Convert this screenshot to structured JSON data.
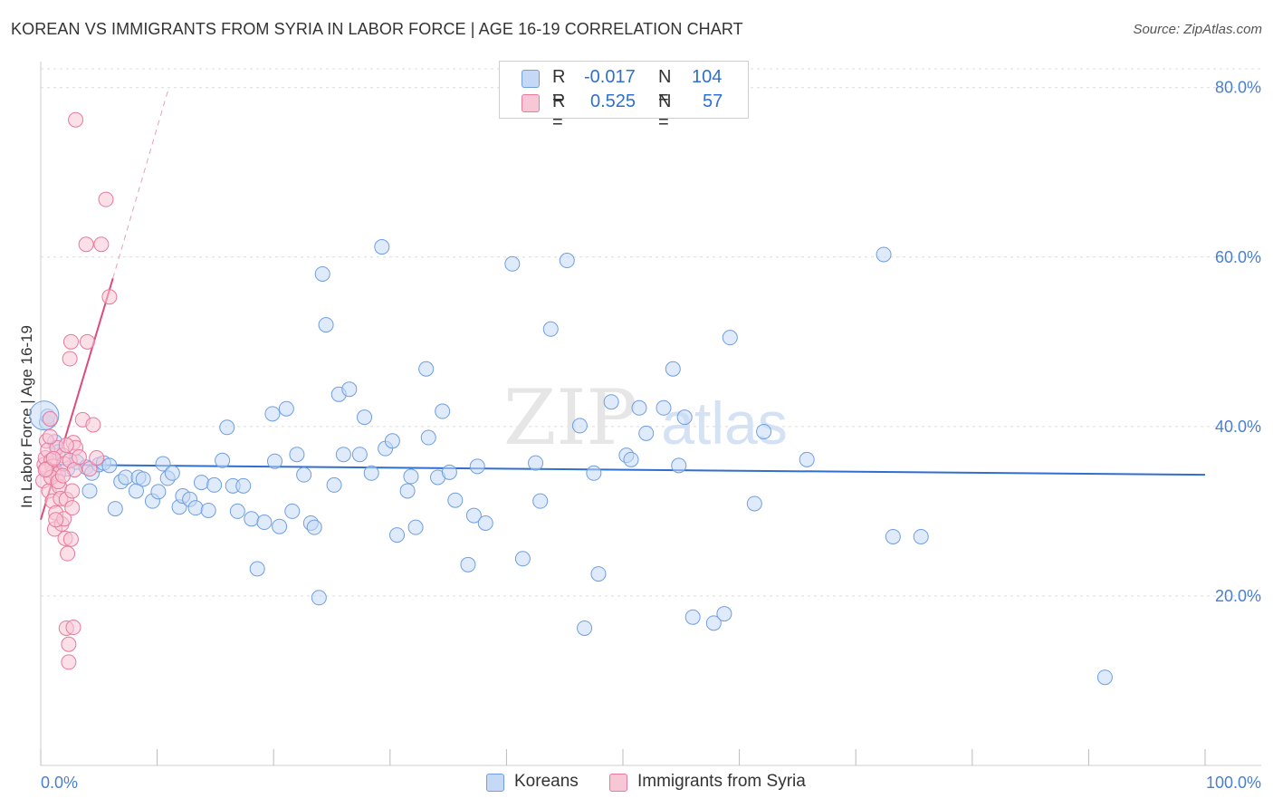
{
  "title": "KOREAN VS IMMIGRANTS FROM SYRIA IN LABOR FORCE | AGE 16-19 CORRELATION CHART",
  "source": "Source: ZipAtlas.com",
  "watermark": "ZIPatlas",
  "colors": {
    "blue": "#6f9fe0",
    "blue_fill": "#c5d8f5",
    "blue_line": "#2f6fd0",
    "pink": "#e8799f",
    "pink_fill": "#f7c7d6",
    "pink_line": "#e04a7a",
    "axis_text": "#4a7fd0"
  },
  "legend": {
    "rows": [
      {
        "r_label": "R =",
        "r_value": "-0.017",
        "n_label": "N =",
        "n_value": "104"
      },
      {
        "r_label": "R =",
        "r_value": "0.525",
        "n_label": "N =",
        "n_value": "57"
      }
    ]
  },
  "bottom_legend": {
    "series1": "Koreans",
    "series2": "Immigrants from Syria"
  },
  "chart_data": {
    "type": "scatter",
    "ylabel": "In Labor Force | Age 16-19",
    "xlabel": "",
    "xlim": [
      0,
      100
    ],
    "ylim": [
      0,
      82
    ],
    "x_tick_labels": [
      "0.0%",
      "100.0%"
    ],
    "y_ticks": [
      20,
      40,
      60,
      80
    ],
    "y_tick_labels": [
      "20.0%",
      "40.0%",
      "60.0%",
      "80.0%"
    ],
    "grid": true,
    "legend_position": "top-center",
    "series": [
      {
        "name": "Koreans",
        "color": "#6f9fe0",
        "trend": {
          "x": [
            0,
            100
          ],
          "y": [
            35.5,
            34.3
          ]
        },
        "points": [
          [
            0.5,
            40.5
          ],
          [
            0.6,
            41.2
          ],
          [
            1.2,
            38.2
          ],
          [
            1.5,
            37.0
          ],
          [
            2.3,
            35.0
          ],
          [
            3.1,
            35.8
          ],
          [
            3.9,
            35.2
          ],
          [
            4.2,
            32.4
          ],
          [
            4.4,
            34.5
          ],
          [
            5.0,
            35.5
          ],
          [
            5.4,
            35.7
          ],
          [
            5.9,
            35.4
          ],
          [
            6.4,
            30.3
          ],
          [
            6.9,
            33.5
          ],
          [
            7.3,
            34.0
          ],
          [
            8.2,
            32.4
          ],
          [
            8.4,
            34.0
          ],
          [
            8.8,
            33.8
          ],
          [
            9.6,
            31.2
          ],
          [
            10.1,
            32.3
          ],
          [
            10.5,
            35.6
          ],
          [
            10.9,
            33.9
          ],
          [
            11.3,
            34.5
          ],
          [
            11.9,
            30.5
          ],
          [
            12.2,
            31.8
          ],
          [
            12.8,
            31.4
          ],
          [
            13.3,
            30.4
          ],
          [
            13.8,
            33.4
          ],
          [
            14.4,
            30.1
          ],
          [
            14.9,
            33.1
          ],
          [
            15.6,
            36.0
          ],
          [
            16.0,
            39.9
          ],
          [
            16.5,
            33.0
          ],
          [
            16.9,
            30.0
          ],
          [
            17.4,
            33.0
          ],
          [
            18.1,
            29.1
          ],
          [
            18.6,
            23.2
          ],
          [
            19.2,
            28.7
          ],
          [
            19.9,
            41.5
          ],
          [
            20.1,
            35.9
          ],
          [
            20.5,
            28.2
          ],
          [
            21.1,
            42.1
          ],
          [
            21.6,
            30.0
          ],
          [
            22.0,
            36.7
          ],
          [
            22.6,
            34.3
          ],
          [
            23.2,
            28.6
          ],
          [
            23.5,
            28.1
          ],
          [
            23.9,
            19.8
          ],
          [
            24.2,
            58.0
          ],
          [
            24.5,
            52.0
          ],
          [
            25.2,
            33.1
          ],
          [
            25.6,
            43.8
          ],
          [
            26.0,
            36.7
          ],
          [
            26.5,
            44.4
          ],
          [
            27.4,
            36.7
          ],
          [
            27.8,
            41.1
          ],
          [
            28.4,
            34.5
          ],
          [
            29.3,
            61.2
          ],
          [
            29.6,
            37.4
          ],
          [
            30.2,
            38.3
          ],
          [
            30.6,
            27.2
          ],
          [
            31.5,
            32.4
          ],
          [
            31.8,
            34.1
          ],
          [
            32.2,
            28.1
          ],
          [
            33.1,
            46.8
          ],
          [
            33.3,
            38.7
          ],
          [
            34.1,
            34.0
          ],
          [
            34.5,
            41.8
          ],
          [
            35.1,
            34.6
          ],
          [
            35.6,
            31.3
          ],
          [
            36.7,
            23.7
          ],
          [
            37.2,
            29.5
          ],
          [
            37.5,
            35.3
          ],
          [
            38.2,
            28.6
          ],
          [
            40.5,
            59.2
          ],
          [
            41.4,
            24.4
          ],
          [
            42.5,
            35.7
          ],
          [
            42.9,
            31.2
          ],
          [
            43.8,
            51.5
          ],
          [
            45.2,
            59.6
          ],
          [
            46.3,
            40.1
          ],
          [
            46.7,
            16.2
          ],
          [
            47.5,
            34.5
          ],
          [
            47.9,
            22.6
          ],
          [
            49.0,
            42.9
          ],
          [
            50.3,
            36.6
          ],
          [
            50.7,
            36.1
          ],
          [
            51.4,
            42.2
          ],
          [
            52.0,
            39.2
          ],
          [
            53.5,
            42.2
          ],
          [
            54.3,
            46.8
          ],
          [
            54.8,
            35.4
          ],
          [
            55.3,
            41.1
          ],
          [
            56.0,
            17.5
          ],
          [
            57.8,
            16.8
          ],
          [
            58.7,
            17.9
          ],
          [
            59.2,
            50.5
          ],
          [
            61.3,
            30.9
          ],
          [
            62.1,
            39.4
          ],
          [
            65.8,
            36.1
          ],
          [
            72.4,
            60.3
          ],
          [
            73.2,
            27.0
          ],
          [
            75.6,
            27.0
          ],
          [
            91.4,
            10.4
          ]
        ]
      },
      {
        "name": "Immigrants from Syria",
        "color": "#e8799f",
        "trend": {
          "x": [
            0,
            6.2
          ],
          "y": [
            29.0,
            57.5
          ]
        },
        "trend_extension": {
          "x": [
            6.2,
            11.0
          ],
          "y": [
            57.5,
            80.0
          ]
        },
        "points": [
          [
            0.2,
            33.6
          ],
          [
            0.3,
            35.5
          ],
          [
            0.4,
            36.3
          ],
          [
            0.5,
            38.3
          ],
          [
            0.6,
            37.2
          ],
          [
            0.7,
            32.4
          ],
          [
            0.8,
            40.9
          ],
          [
            0.9,
            36.0
          ],
          [
            1.0,
            35.3
          ],
          [
            1.0,
            31.2
          ],
          [
            1.1,
            34.7
          ],
          [
            1.2,
            27.9
          ],
          [
            1.3,
            29.8
          ],
          [
            1.4,
            37.5
          ],
          [
            1.5,
            34.4
          ],
          [
            1.6,
            32.9
          ],
          [
            1.7,
            31.5
          ],
          [
            1.8,
            28.5
          ],
          [
            1.9,
            36.6
          ],
          [
            2.0,
            29.1
          ],
          [
            2.0,
            35.6
          ],
          [
            2.1,
            26.8
          ],
          [
            2.2,
            31.4
          ],
          [
            2.2,
            16.2
          ],
          [
            2.3,
            25.0
          ],
          [
            2.4,
            14.3
          ],
          [
            2.4,
            12.2
          ],
          [
            2.5,
            48.0
          ],
          [
            2.5,
            36.0
          ],
          [
            2.6,
            50.0
          ],
          [
            2.6,
            26.7
          ],
          [
            2.7,
            32.4
          ],
          [
            2.8,
            38.1
          ],
          [
            2.9,
            34.9
          ],
          [
            3.0,
            37.5
          ],
          [
            2.7,
            30.4
          ],
          [
            0.5,
            35.0
          ],
          [
            0.9,
            34.0
          ],
          [
            1.5,
            33.5
          ],
          [
            2.8,
            16.3
          ],
          [
            3.0,
            76.2
          ],
          [
            3.3,
            36.4
          ],
          [
            3.6,
            40.8
          ],
          [
            3.9,
            61.5
          ],
          [
            4.0,
            50.0
          ],
          [
            4.2,
            35.0
          ],
          [
            4.5,
            40.2
          ],
          [
            4.8,
            36.3
          ],
          [
            5.2,
            61.5
          ],
          [
            5.6,
            66.8
          ],
          [
            5.9,
            55.3
          ],
          [
            1.3,
            29.0
          ],
          [
            0.8,
            38.8
          ],
          [
            1.9,
            34.2
          ],
          [
            2.2,
            37.8
          ],
          [
            0.4,
            34.9
          ],
          [
            1.1,
            36.2
          ]
        ]
      }
    ]
  }
}
